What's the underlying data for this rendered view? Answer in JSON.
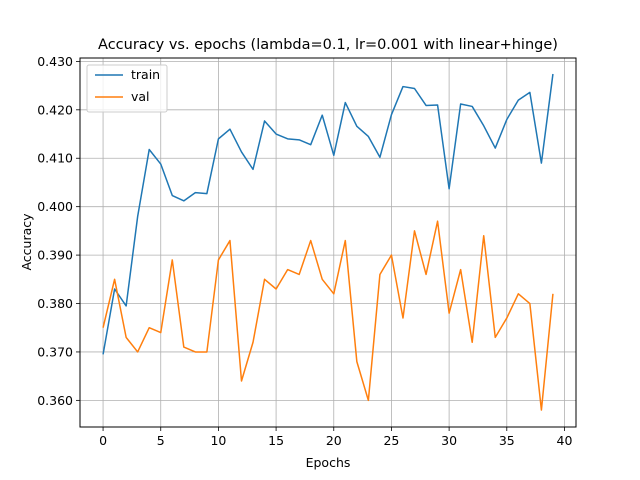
{
  "chart_data": {
    "type": "line",
    "title": "Accuracy vs. epochs (lambda=0.1, lr=0.001 with linear+hinge)",
    "xlabel": "Epochs",
    "ylabel": "Accuracy",
    "xlim": [
      -2,
      41
    ],
    "ylim": [
      0.3545,
      0.4307
    ],
    "xticks": [
      0,
      5,
      10,
      15,
      20,
      25,
      30,
      35,
      40
    ],
    "yticks": [
      0.36,
      0.37,
      0.38,
      0.39,
      0.4,
      0.41,
      0.42,
      0.43
    ],
    "xtick_labels": [
      "0",
      "5",
      "10",
      "15",
      "20",
      "25",
      "30",
      "35",
      "40"
    ],
    "ytick_labels": [
      "0.360",
      "0.370",
      "0.380",
      "0.390",
      "0.400",
      "0.410",
      "0.420",
      "0.430"
    ],
    "grid": true,
    "legend_position": "top-left",
    "x": [
      0,
      1,
      2,
      3,
      4,
      5,
      6,
      7,
      8,
      9,
      10,
      11,
      12,
      13,
      14,
      15,
      16,
      17,
      18,
      19,
      20,
      21,
      22,
      23,
      24,
      25,
      26,
      27,
      28,
      29,
      30,
      31,
      32,
      33,
      34,
      35,
      36,
      37,
      38,
      39
    ],
    "series": [
      {
        "name": "train",
        "color": "#1f77b4",
        "values": [
          0.3695,
          0.383,
          0.3795,
          0.398,
          0.4118,
          0.4088,
          0.4023,
          0.4012,
          0.4029,
          0.4027,
          0.414,
          0.416,
          0.4113,
          0.4077,
          0.4177,
          0.415,
          0.414,
          0.4138,
          0.4128,
          0.4189,
          0.4106,
          0.4215,
          0.4166,
          0.4145,
          0.4102,
          0.419,
          0.4248,
          0.4244,
          0.4209,
          0.421,
          0.4037,
          0.4212,
          0.4207,
          0.4167,
          0.4121,
          0.418,
          0.422,
          0.4236,
          0.409,
          0.4274
        ]
      },
      {
        "name": "val",
        "color": "#ff7f0e",
        "values": [
          0.375,
          0.385,
          0.373,
          0.37,
          0.375,
          0.374,
          0.389,
          0.371,
          0.37,
          0.37,
          0.389,
          0.393,
          0.364,
          0.372,
          0.385,
          0.383,
          0.387,
          0.386,
          0.393,
          0.385,
          0.382,
          0.393,
          0.368,
          0.36,
          0.386,
          0.39,
          0.377,
          0.395,
          0.386,
          0.397,
          0.378,
          0.387,
          0.372,
          0.394,
          0.373,
          0.377,
          0.382,
          0.38,
          0.358,
          0.382
        ]
      }
    ]
  }
}
